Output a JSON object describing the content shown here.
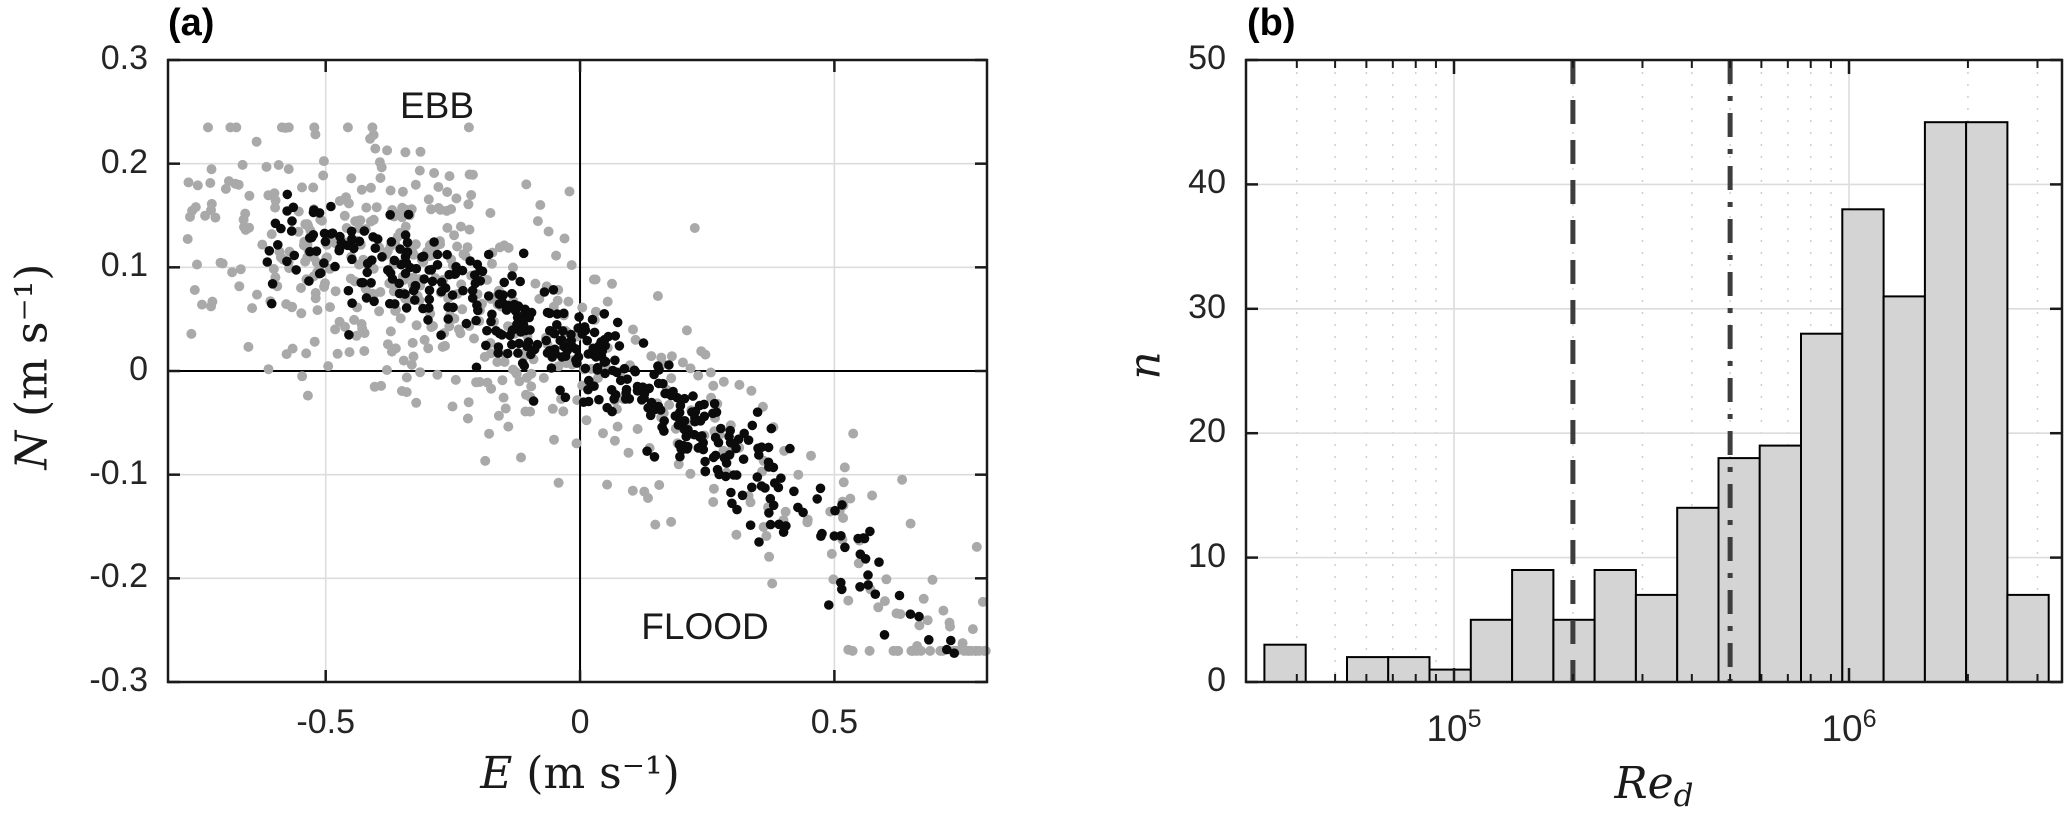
{
  "figure": {
    "background": "#ffffff",
    "axis_color": "#1a1a1a",
    "grid_color": "#dcdcdc",
    "minor_grid_color": "#cfcfcf",
    "tick_label_color": "#252525"
  },
  "chart_data": [
    {
      "id": "a",
      "type": "scatter",
      "title": "(a)",
      "xlabel": {
        "var": "E",
        "rest": " (m s⁻¹)"
      },
      "ylabel": {
        "var": "N",
        "rest": " (m s⁻¹)"
      },
      "xlim": [
        -0.81,
        0.8
      ],
      "ylim": [
        -0.3,
        0.3
      ],
      "xticks": [
        {
          "v": -0.5,
          "label": "-0.5"
        },
        {
          "v": 0,
          "label": "0"
        },
        {
          "v": 0.5,
          "label": "0.5"
        }
      ],
      "yticks": [
        {
          "v": 0.3,
          "label": "0.3"
        },
        {
          "v": 0.2,
          "label": "0.2"
        },
        {
          "v": 0.1,
          "label": "0.1"
        },
        {
          "v": 0,
          "label": "0"
        },
        {
          "v": -0.1,
          "label": "-0.1"
        },
        {
          "v": -0.2,
          "label": "-0.2"
        },
        {
          "v": -0.3,
          "label": "-0.3"
        }
      ],
      "grid_x": [
        -0.5,
        0.5
      ],
      "grid_y": [
        0.2,
        0.1,
        -0.1,
        -0.2
      ],
      "zero_lines": {
        "x": 0,
        "y": 0,
        "color": "#000000"
      },
      "annotations": [
        {
          "name": "ebb",
          "text": "EBB",
          "x": -0.28,
          "y": 0.255
        },
        {
          "name": "flood",
          "text": "FLOOD",
          "x": 0.245,
          "y": -0.248
        }
      ],
      "trend": {
        "a": -0.186,
        "b": -0.284,
        "c": 0.02
      },
      "series": [
        {
          "name": "gray-points",
          "color": "#a9a9a9",
          "n": 560,
          "radius": 5.0,
          "noise_sd": 0.062,
          "x_range": [
            -0.78,
            0.8
          ],
          "x_cluster": {
            "mean": -0.33,
            "sd": 0.2,
            "frac": 0.45
          },
          "y_clamp": [
            -0.27,
            0.235
          ],
          "seed": 7
        },
        {
          "name": "black-points",
          "color": "#0b0b0b",
          "n": 430,
          "radius": 4.8,
          "noise_sd": 0.024,
          "x_range": [
            -0.62,
            0.77
          ],
          "x_cluster": {
            "mean": -0.05,
            "sd": 0.33,
            "frac": 1.0
          },
          "y_clamp": [
            -0.285,
            0.205
          ],
          "seed": 13
        }
      ]
    },
    {
      "id": "b",
      "type": "bar",
      "title": "(b)",
      "xlabel": {
        "var": "Re",
        "sub": "d"
      },
      "ylabel": {
        "var": "n"
      },
      "x_scale": "log10",
      "xlim_log": [
        4.4734,
        6.5392
      ],
      "ylim": [
        0,
        50
      ],
      "yticks": [
        {
          "v": 0,
          "label": "0"
        },
        {
          "v": 10,
          "label": "10"
        },
        {
          "v": 20,
          "label": "20"
        },
        {
          "v": 30,
          "label": "30"
        },
        {
          "v": 40,
          "label": "40"
        },
        {
          "v": 50,
          "label": "50"
        }
      ],
      "grid_y": [
        10,
        20,
        30,
        40
      ],
      "xticks_major": [
        {
          "log": 5,
          "base": "10",
          "exp": "5"
        },
        {
          "log": 6,
          "base": "10",
          "exp": "6"
        }
      ],
      "minor_mantissas": [
        2,
        3,
        4,
        5,
        6,
        7,
        8,
        9
      ],
      "minor_decades": [
        4,
        5,
        6
      ],
      "bin_edges_log_start": 4.52,
      "bin_width_log": 0.1045,
      "counts": [
        3,
        0,
        2,
        2,
        1,
        5,
        9,
        5,
        9,
        7,
        14,
        18,
        19,
        28,
        38,
        31,
        45,
        45,
        7
      ],
      "bar_fill": "#d4d4d4",
      "bar_edge": "#000000",
      "vlines": [
        {
          "value": "2e5",
          "log": 5.301,
          "style": "dashed",
          "color": "#3d3d3d"
        },
        {
          "value": "5e5",
          "log": 5.699,
          "style": "dashdot",
          "color": "#3d3d3d"
        }
      ]
    }
  ],
  "labels": {
    "title_a": "(a)",
    "title_b": "(b)",
    "ebb": "EBB",
    "flood": "FLOOD"
  }
}
